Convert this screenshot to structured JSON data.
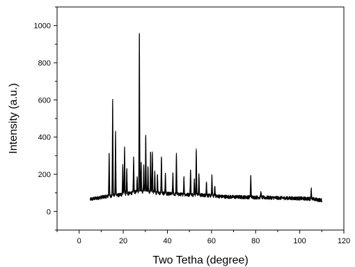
{
  "chart_data": {
    "type": "line",
    "title": "",
    "xlabel": "Two Tetha (degree)",
    "ylabel": "Intensity (a.u.)",
    "xlim": [
      -10,
      120
    ],
    "ylim": [
      -100,
      1100
    ],
    "x_ticks": [
      0,
      20,
      40,
      60,
      80,
      100,
      120
    ],
    "y_ticks": [
      0,
      200,
      400,
      600,
      800,
      1000
    ],
    "grid": false,
    "legend": "none",
    "line_color": "#000000",
    "baseline": [
      [
        5,
        65
      ],
      [
        8,
        72
      ],
      [
        12,
        80
      ],
      [
        18,
        88
      ],
      [
        22,
        95
      ],
      [
        26,
        105
      ],
      [
        30,
        108
      ],
      [
        35,
        100
      ],
      [
        40,
        95
      ],
      [
        45,
        92
      ],
      [
        50,
        90
      ],
      [
        55,
        88
      ],
      [
        60,
        85
      ],
      [
        65,
        80
      ],
      [
        70,
        78
      ],
      [
        80,
        76
      ],
      [
        90,
        73
      ],
      [
        100,
        70
      ],
      [
        105,
        68
      ],
      [
        110,
        60
      ]
    ],
    "noise_amplitude": 10,
    "peaks": [
      {
        "x": 13.6,
        "y": 315
      },
      {
        "x": 15.2,
        "y": 595
      },
      {
        "x": 16.5,
        "y": 430
      },
      {
        "x": 19.8,
        "y": 255
      },
      {
        "x": 20.6,
        "y": 342
      },
      {
        "x": 21.6,
        "y": 230
      },
      {
        "x": 24.7,
        "y": 290
      },
      {
        "x": 26.3,
        "y": 180
      },
      {
        "x": 27.3,
        "y": 960
      },
      {
        "x": 28.1,
        "y": 265
      },
      {
        "x": 29.3,
        "y": 245
      },
      {
        "x": 30.2,
        "y": 405
      },
      {
        "x": 31.2,
        "y": 240
      },
      {
        "x": 32.4,
        "y": 320
      },
      {
        "x": 33.2,
        "y": 315
      },
      {
        "x": 34.3,
        "y": 220
      },
      {
        "x": 35.5,
        "y": 195
      },
      {
        "x": 37.3,
        "y": 295
      },
      {
        "x": 39.1,
        "y": 205
      },
      {
        "x": 42.5,
        "y": 205
      },
      {
        "x": 44.1,
        "y": 315
      },
      {
        "x": 47.5,
        "y": 185
      },
      {
        "x": 50.5,
        "y": 225
      },
      {
        "x": 52.2,
        "y": 175
      },
      {
        "x": 53.1,
        "y": 338
      },
      {
        "x": 54.3,
        "y": 200
      },
      {
        "x": 57.7,
        "y": 160
      },
      {
        "x": 60.2,
        "y": 190
      },
      {
        "x": 61.5,
        "y": 135
      },
      {
        "x": 77.8,
        "y": 190
      },
      {
        "x": 82.4,
        "y": 105
      },
      {
        "x": 105.2,
        "y": 125
      }
    ]
  }
}
